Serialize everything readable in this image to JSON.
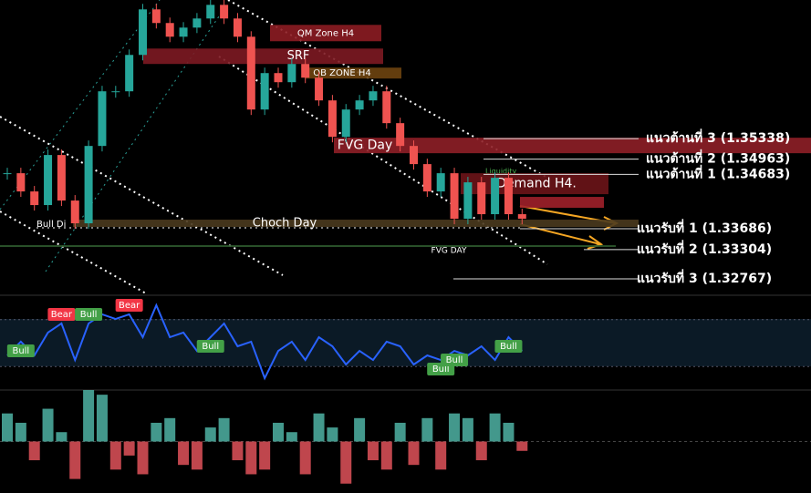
{
  "chart_data": [
    {
      "type": "candlestick",
      "values": [
        1.34704,
        1.3437,
        1.3412,
        1.35038,
        1.34203,
        1.33786,
        1.35204,
        1.36206,
        1.36206,
        1.36873,
        1.37708,
        1.37458,
        1.37207,
        1.37374,
        1.37541,
        1.37791,
        1.37541,
        1.37207,
        1.35872,
        1.3654,
        1.36373,
        1.36707,
        1.36456,
        1.36039,
        1.35371,
        1.35872,
        1.36039,
        1.36206,
        1.35622,
        1.35204,
        1.34871,
        1.3437,
        1.34704,
        1.33869,
        1.34537,
        1.33953,
        1.3462,
        1.33953,
        1.33869
      ],
      "up_color": "#26a69a",
      "down_color": "#ef5350",
      "ylim": [
        1.325,
        1.3788
      ],
      "zones": [
        {
          "label": "QM Zone H4",
          "top": 1.37424,
          "bottom": 1.37124,
          "color": "#8c1c22"
        },
        {
          "label": "SRF",
          "top": 1.3699,
          "bottom": 1.36707,
          "color": "#7d1a22"
        },
        {
          "label": "OB ZONE H4",
          "top": 1.3664,
          "bottom": 1.3644,
          "color": "#6e4410"
        },
        {
          "label": "FVG Day",
          "top": 1.35355,
          "bottom": 1.35071,
          "color": "#8e1f27"
        },
        {
          "label": "Demand H4.",
          "top": 1.34704,
          "bottom": 1.3432,
          "color": "#6b1418"
        },
        {
          "top": 1.3427,
          "bottom": 1.3407,
          "color": "#a0202a"
        },
        {
          "label": "Choch Day",
          "top": 1.33853,
          "bottom": 1.33719,
          "color": "#4a3a1e"
        },
        {
          "label": "FVG DAY",
          "top": 1.33385,
          "bottom": 1.33352,
          "color": "#2e5a2e"
        }
      ],
      "levels": [
        {
          "label": "แนวต้านที่ 3 (1.35338)",
          "value": 1.35338
        },
        {
          "label": "แนวต้านที่ 2 (1.34963)",
          "value": 1.34963
        },
        {
          "label": "แนวต้านที่ 1 (1.34683)",
          "value": 1.34683
        },
        {
          "label": "แนวรับที่ 1 (1.33686)",
          "value": 1.33686
        },
        {
          "label": "แนวรับที่ 2 (1.33304)",
          "value": 1.33304
        },
        {
          "label": "แนวรับที่ 3 (1.32767)",
          "value": 1.32767
        }
      ],
      "annotations": [
        "Bull Di",
        "Liquidity"
      ]
    },
    {
      "type": "line",
      "values": [
        36.9,
        51.5,
        36.9,
        61.2,
        70.9,
        32,
        70.9,
        80.6,
        75.7,
        80.6,
        56.3,
        90.3,
        56.3,
        61.2,
        41.7,
        56.3,
        70.9,
        46.6,
        51.5,
        12.6,
        41.7,
        51.5,
        32,
        56.3,
        46.6,
        27.2,
        41.7,
        32,
        51.5,
        46.6,
        27.2,
        36.9,
        32,
        41.7,
        36.9,
        46.6,
        32,
        56.3,
        41.7
      ],
      "signals": [
        null,
        {
          "label": "Bull",
          "color": "#43a047"
        },
        null,
        null,
        {
          "label": "Bear",
          "color": "#f23645"
        },
        null,
        {
          "label": "Bull",
          "color": "#43a047"
        },
        null,
        null,
        {
          "label": "Bear",
          "color": "#f23645"
        },
        null,
        null,
        null,
        null,
        null,
        {
          "label": "Bull",
          "color": "#43a047"
        },
        null,
        null,
        null,
        null,
        null,
        null,
        null,
        null,
        null,
        null,
        null,
        null,
        null,
        null,
        null,
        null,
        {
          "label": "Bull",
          "color": "#43a047"
        },
        {
          "label": "Bull",
          "color": "#43a047"
        },
        null,
        null,
        null,
        {
          "label": "Bull",
          "color": "#43a047"
        },
        null
      ],
      "color": "#2962ff",
      "ylim": [
        0,
        100
      ],
      "bands": [
        25,
        75
      ]
    },
    {
      "type": "histogram",
      "values": [
        30,
        20,
        -20,
        35,
        10,
        -40,
        55,
        50,
        -30,
        -15,
        -35,
        20,
        25,
        -25,
        -30,
        15,
        25,
        -20,
        -35,
        -30,
        20,
        10,
        -35,
        30,
        15,
        -45,
        25,
        -20,
        -30,
        20,
        -25,
        25,
        -30,
        30,
        25,
        -20,
        30,
        20,
        -10
      ],
      "up_color": "#4fb3a5",
      "down_color": "#e0525a",
      "ylim": [
        -55,
        55
      ]
    }
  ]
}
